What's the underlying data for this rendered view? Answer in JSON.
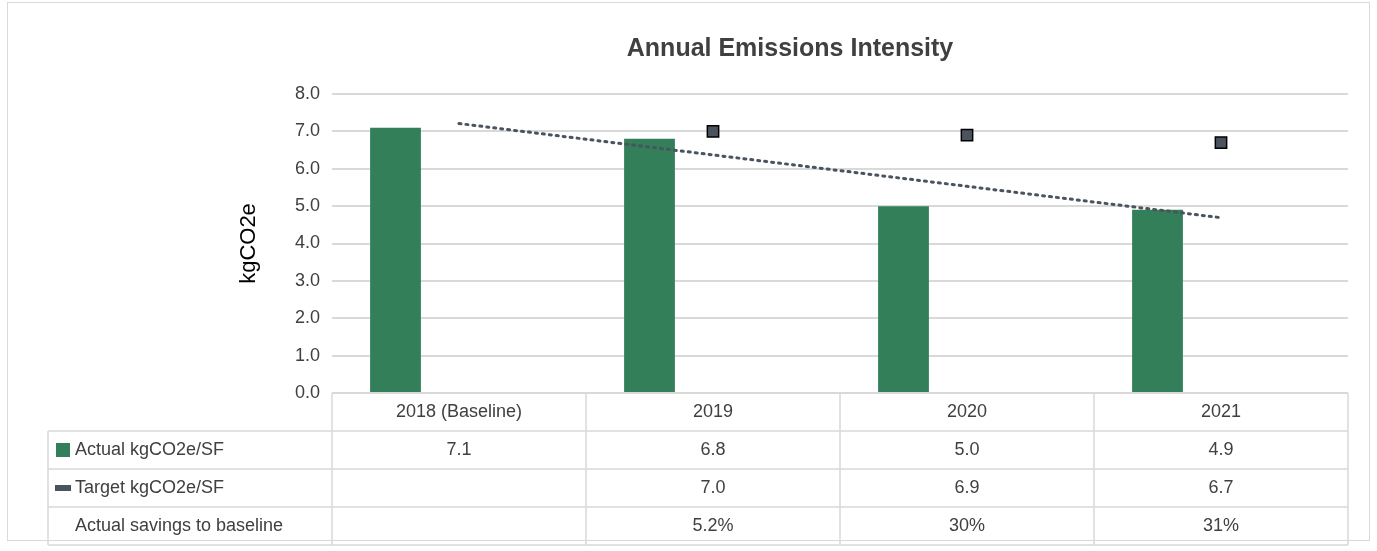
{
  "chart_data": {
    "type": "bar",
    "title": "Annual Emissions Intensity",
    "ylabel": "kgCO2e",
    "categories": [
      "2018 (Baseline)",
      "2019",
      "2020",
      "2021"
    ],
    "series": [
      {
        "name": "Actual kgCO2e/SF",
        "color": "#327f5a",
        "values": [
          7.1,
          6.8,
          5.0,
          4.9
        ],
        "value_labels": [
          "7.1",
          "6.8",
          "5.0",
          "4.9"
        ]
      },
      {
        "name": "Target kgCO2e/SF",
        "type": "scatter",
        "marker": "square",
        "color": "#4b545e",
        "values": [
          null,
          7.0,
          6.9,
          6.7
        ],
        "value_labels": [
          null,
          "7.0",
          "6.9",
          "6.7"
        ]
      },
      {
        "name": "Actual savings to baseline",
        "type": "bar",
        "values": [
          null,
          null,
          null,
          null
        ],
        "value_labels": [
          null,
          "5.2%",
          "30%",
          "31%"
        ]
      },
      {
        "type": "line",
        "color": "#4b545e",
        "line_style": "dotted",
        "marker": "none",
        "values": [
          7.21,
          6.37,
          5.53,
          4.69
        ]
      }
    ],
    "ylim": [
      0,
      8
    ],
    "yticks": [
      {
        "value": 0,
        "label": "0.0"
      },
      {
        "value": 1,
        "label": "1.0"
      },
      {
        "value": 2,
        "label": "2.0"
      },
      {
        "value": 3,
        "label": "3.0"
      },
      {
        "value": 4,
        "label": "4.0"
      },
      {
        "value": 5,
        "label": "5.0"
      },
      {
        "value": 6,
        "label": "6.0"
      },
      {
        "value": 7,
        "label": "7.0"
      },
      {
        "value": 8,
        "label": "8.0"
      }
    ],
    "grid": "y",
    "legend": "bottom left"
  }
}
